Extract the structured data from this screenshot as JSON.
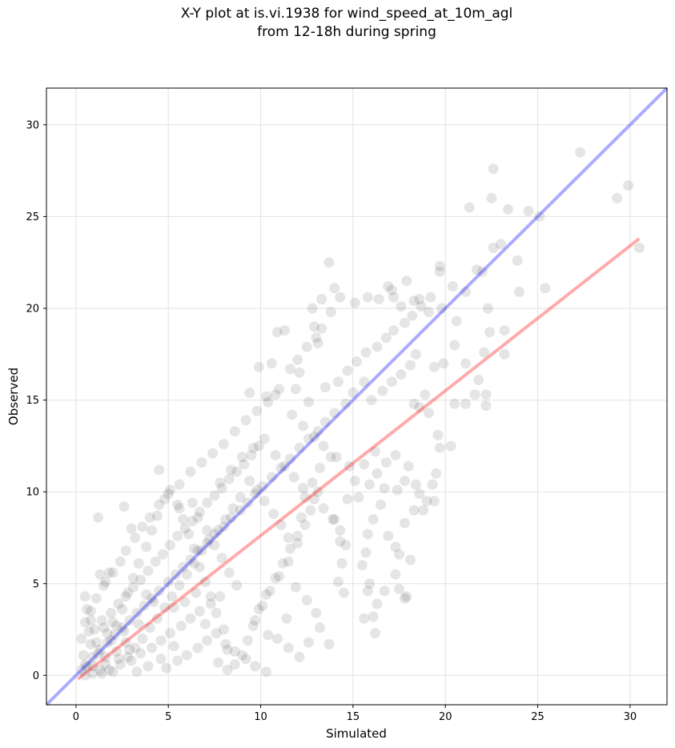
{
  "title_line1": "X-Y plot at is.vi.1938 for wind_speed_at_10m_agl",
  "title_line2": "from 12-18h during spring",
  "chart_data": {
    "type": "scatter",
    "title": "X-Y plot at is.vi.1938 for wind_speed_at_10m_agl\nfrom 12-18h during spring",
    "xlabel": "Simulated",
    "ylabel": "Observed",
    "xlim": [
      -1.6,
      32.0
    ],
    "ylim": [
      -1.6,
      32.0
    ],
    "xticks": [
      0,
      5,
      10,
      15,
      20,
      25,
      30
    ],
    "yticks": [
      0,
      5,
      10,
      15,
      20,
      25,
      30
    ],
    "grid": true,
    "point_color": "#000000",
    "point_alpha": 0.1,
    "lines": [
      {
        "type": "one-to-one",
        "color": "#0000ff",
        "x": [
          -1.6,
          32.0
        ],
        "y": [
          -1.6,
          32.0
        ]
      },
      {
        "type": "regression",
        "color": "#ff0000",
        "x": [
          0.1,
          30.5
        ],
        "y": [
          -0.2,
          23.8
        ]
      }
    ],
    "points": [
      [
        30.5,
        23.3
      ],
      [
        29.9,
        26.7
      ],
      [
        29.3,
        26.0
      ],
      [
        27.3,
        28.5
      ],
      [
        25.4,
        21.1
      ],
      [
        25.1,
        25.0
      ],
      [
        24.5,
        25.3
      ],
      [
        23.4,
        25.4
      ],
      [
        22.6,
        27.6
      ],
      [
        22.5,
        26.0
      ],
      [
        23.0,
        23.5
      ],
      [
        22.6,
        23.3
      ],
      [
        21.3,
        25.5
      ],
      [
        22.0,
        22.0
      ],
      [
        23.2,
        18.8
      ],
      [
        24.0,
        20.9
      ],
      [
        23.9,
        22.6
      ],
      [
        23.2,
        17.5
      ],
      [
        22.3,
        20.0
      ],
      [
        22.4,
        18.7
      ],
      [
        22.1,
        17.6
      ],
      [
        21.8,
        16.1
      ],
      [
        21.6,
        15.3
      ],
      [
        22.2,
        15.3
      ],
      [
        22.2,
        14.7
      ],
      [
        21.1,
        14.8
      ],
      [
        20.5,
        14.8
      ],
      [
        20.3,
        12.5
      ],
      [
        19.7,
        12.4
      ],
      [
        19.6,
        13.1
      ],
      [
        19.5,
        11.0
      ],
      [
        19.3,
        10.4
      ],
      [
        19.4,
        9.5
      ],
      [
        19.7,
        22.3
      ],
      [
        19.7,
        22.0
      ],
      [
        20.4,
        21.2
      ],
      [
        21.7,
        22.1
      ],
      [
        21.1,
        20.9
      ],
      [
        19.1,
        19.8
      ],
      [
        18.6,
        20.5
      ],
      [
        19.8,
        20.0
      ],
      [
        20.6,
        19.3
      ],
      [
        20.5,
        18.0
      ],
      [
        19.9,
        17.0
      ],
      [
        21.1,
        17.0
      ],
      [
        19.4,
        16.8
      ],
      [
        18.9,
        15.3
      ],
      [
        18.3,
        14.8
      ],
      [
        19.1,
        14.3
      ],
      [
        18.6,
        14.6
      ],
      [
        17.9,
        21.5
      ],
      [
        18.3,
        20.4
      ],
      [
        17.6,
        20.1
      ],
      [
        17.2,
        20.6
      ],
      [
        16.9,
        21.2
      ],
      [
        17.1,
        21.0
      ],
      [
        16.4,
        20.5
      ],
      [
        15.8,
        20.6
      ],
      [
        15.1,
        20.3
      ],
      [
        14.3,
        20.6
      ],
      [
        14.0,
        21.1
      ],
      [
        13.7,
        22.5
      ],
      [
        13.8,
        19.8
      ],
      [
        13.3,
        20.5
      ],
      [
        12.8,
        20.0
      ],
      [
        12.9,
        19.0
      ],
      [
        13.3,
        18.9
      ],
      [
        13.0,
        18.4
      ],
      [
        13.1,
        18.1
      ],
      [
        12.5,
        17.9
      ],
      [
        12.0,
        17.2
      ],
      [
        12.1,
        16.5
      ],
      [
        11.3,
        18.8
      ],
      [
        10.9,
        18.7
      ],
      [
        11.6,
        16.7
      ],
      [
        10.6,
        17.0
      ],
      [
        9.9,
        16.8
      ],
      [
        9.4,
        15.4
      ],
      [
        10.3,
        15.2
      ],
      [
        10.8,
        15.3
      ],
      [
        11.9,
        15.6
      ],
      [
        12.6,
        14.9
      ],
      [
        13.5,
        15.7
      ],
      [
        14.2,
        16.0
      ],
      [
        14.7,
        16.6
      ],
      [
        15.2,
        17.1
      ],
      [
        15.7,
        17.6
      ],
      [
        16.3,
        17.9
      ],
      [
        16.8,
        18.4
      ],
      [
        17.2,
        18.8
      ],
      [
        17.8,
        19.2
      ],
      [
        18.2,
        19.6
      ],
      [
        18.7,
        20.1
      ],
      [
        19.2,
        20.6
      ],
      [
        16.0,
        15.0
      ],
      [
        16.6,
        15.5
      ],
      [
        17.1,
        16.0
      ],
      [
        17.6,
        16.4
      ],
      [
        18.1,
        16.9
      ],
      [
        18.4,
        17.5
      ],
      [
        15.6,
        16.0
      ],
      [
        15.0,
        15.4
      ],
      [
        14.6,
        14.8
      ],
      [
        14.0,
        14.3
      ],
      [
        13.5,
        13.8
      ],
      [
        13.1,
        13.3
      ],
      [
        12.6,
        12.9
      ],
      [
        12.1,
        12.4
      ],
      [
        11.6,
        11.8
      ],
      [
        11.1,
        11.3
      ],
      [
        10.6,
        10.8
      ],
      [
        10.1,
        10.3
      ],
      [
        9.7,
        9.9
      ],
      [
        9.3,
        9.4
      ],
      [
        8.9,
        9.0
      ],
      [
        8.4,
        8.6
      ],
      [
        8.0,
        8.1
      ],
      [
        7.5,
        7.7
      ],
      [
        7.1,
        7.2
      ],
      [
        6.6,
        6.8
      ],
      [
        6.2,
        6.3
      ],
      [
        5.8,
        5.9
      ],
      [
        5.4,
        5.5
      ],
      [
        5.0,
        5.1
      ],
      [
        4.5,
        4.6
      ],
      [
        4.1,
        4.2
      ],
      [
        3.7,
        3.8
      ],
      [
        3.3,
        3.4
      ],
      [
        2.9,
        3.0
      ],
      [
        2.5,
        2.6
      ],
      [
        2.1,
        2.2
      ],
      [
        1.7,
        1.8
      ],
      [
        1.3,
        1.4
      ],
      [
        0.9,
        1.0
      ],
      [
        0.5,
        0.6
      ],
      [
        18.0,
        11.4
      ],
      [
        17.3,
        12.0
      ],
      [
        16.8,
        11.6
      ],
      [
        16.3,
        11.0
      ],
      [
        15.9,
        10.4
      ],
      [
        15.3,
        9.7
      ],
      [
        16.1,
        8.5
      ],
      [
        15.8,
        7.7
      ],
      [
        15.7,
        6.7
      ],
      [
        15.5,
        6.0
      ],
      [
        15.9,
        5.0
      ],
      [
        15.8,
        4.6
      ],
      [
        16.3,
        3.9
      ],
      [
        16.1,
        3.2
      ],
      [
        16.2,
        2.3
      ],
      [
        15.6,
        3.1
      ],
      [
        17.3,
        5.5
      ],
      [
        17.5,
        4.7
      ],
      [
        17.9,
        4.3
      ],
      [
        17.8,
        4.2
      ],
      [
        16.7,
        4.6
      ],
      [
        17.5,
        6.6
      ],
      [
        18.1,
        6.3
      ],
      [
        17.3,
        7.0
      ],
      [
        16.9,
        7.6
      ],
      [
        17.8,
        8.3
      ],
      [
        18.3,
        9.0
      ],
      [
        18.8,
        9.0
      ],
      [
        19.0,
        9.5
      ],
      [
        18.6,
        9.9
      ],
      [
        18.4,
        10.4
      ],
      [
        17.8,
        10.6
      ],
      [
        17.4,
        10.1
      ],
      [
        16.7,
        10.2
      ],
      [
        16.5,
        9.3
      ],
      [
        14.5,
        4.5
      ],
      [
        14.2,
        5.1
      ],
      [
        14.4,
        6.1
      ],
      [
        14.6,
        7.1
      ],
      [
        14.3,
        7.9
      ],
      [
        14.0,
        8.5
      ],
      [
        14.7,
        9.6
      ],
      [
        15.1,
        10.6
      ],
      [
        15.6,
        11.5
      ],
      [
        16.2,
        12.2
      ],
      [
        13.8,
        11.9
      ],
      [
        13.2,
        11.3
      ],
      [
        12.8,
        10.5
      ],
      [
        12.4,
        9.7
      ],
      [
        12.2,
        8.6
      ],
      [
        12.0,
        7.6
      ],
      [
        11.6,
        6.9
      ],
      [
        11.2,
        6.1
      ],
      [
        10.8,
        5.3
      ],
      [
        10.3,
        4.4
      ],
      [
        9.9,
        3.6
      ],
      [
        9.6,
        2.7
      ],
      [
        9.3,
        1.9
      ],
      [
        9.0,
        1.1
      ],
      [
        8.6,
        0.6
      ],
      [
        8.2,
        1.4
      ],
      [
        8.0,
        2.5
      ],
      [
        7.6,
        3.4
      ],
      [
        7.3,
        4.3
      ],
      [
        7.0,
        5.1
      ],
      [
        6.7,
        5.9
      ],
      [
        6.4,
        6.9
      ],
      [
        6.1,
        7.7
      ],
      [
        5.8,
        8.5
      ],
      [
        5.5,
        9.3
      ],
      [
        5.1,
        10.1
      ],
      [
        4.8,
        9.6
      ],
      [
        4.4,
        8.7
      ],
      [
        4.1,
        7.9
      ],
      [
        3.8,
        7.0
      ],
      [
        3.4,
        6.1
      ],
      [
        3.1,
        5.3
      ],
      [
        2.8,
        4.5
      ],
      [
        2.5,
        3.6
      ],
      [
        2.2,
        2.7
      ],
      [
        1.9,
        1.9
      ],
      [
        1.6,
        1.0
      ],
      [
        1.3,
        0.3
      ],
      [
        0.9,
        0.1
      ],
      [
        0.6,
        0.5
      ],
      [
        0.4,
        1.1
      ],
      [
        0.3,
        2.0
      ],
      [
        0.5,
        2.9
      ],
      [
        0.8,
        3.5
      ],
      [
        1.1,
        4.2
      ],
      [
        1.5,
        4.9
      ],
      [
        1.8,
        5.6
      ],
      [
        2.4,
        6.2
      ],
      [
        2.7,
        6.8
      ],
      [
        3.2,
        7.5
      ],
      [
        3.6,
        8.1
      ],
      [
        4.0,
        8.6
      ],
      [
        4.5,
        9.3
      ],
      [
        5.0,
        9.9
      ],
      [
        5.6,
        10.4
      ],
      [
        6.2,
        11.1
      ],
      [
        6.8,
        11.6
      ],
      [
        7.4,
        12.1
      ],
      [
        8.0,
        12.6
      ],
      [
        8.6,
        13.3
      ],
      [
        9.2,
        13.9
      ],
      [
        9.8,
        14.4
      ],
      [
        10.4,
        14.9
      ],
      [
        11.0,
        15.6
      ],
      [
        11.7,
        14.2
      ],
      [
        12.3,
        13.6
      ],
      [
        12.9,
        13.0
      ],
      [
        13.4,
        12.5
      ],
      [
        14.1,
        11.9
      ],
      [
        14.8,
        11.4
      ],
      [
        13.1,
        10.0
      ],
      [
        12.7,
        9.0
      ],
      [
        12.4,
        8.2
      ],
      [
        12.0,
        7.2
      ],
      [
        11.5,
        6.2
      ],
      [
        11.0,
        5.4
      ],
      [
        10.5,
        4.6
      ],
      [
        10.1,
        3.8
      ],
      [
        9.7,
        3.0
      ],
      [
        10.4,
        2.2
      ],
      [
        10.9,
        2.0
      ],
      [
        11.5,
        1.5
      ],
      [
        12.1,
        1.0
      ],
      [
        12.6,
        1.8
      ],
      [
        13.2,
        2.6
      ],
      [
        13.7,
        1.7
      ],
      [
        13.0,
        3.4
      ],
      [
        12.5,
        4.1
      ],
      [
        11.9,
        4.8
      ],
      [
        11.4,
        3.1
      ],
      [
        8.7,
        4.9
      ],
      [
        8.3,
        5.6
      ],
      [
        7.9,
        6.4
      ],
      [
        7.5,
        7.1
      ],
      [
        7.1,
        7.9
      ],
      [
        6.6,
        8.6
      ],
      [
        6.3,
        9.4
      ],
      [
        7.8,
        10.5
      ],
      [
        8.4,
        11.2
      ],
      [
        9.0,
        11.9
      ],
      [
        9.6,
        12.4
      ],
      [
        10.2,
        12.9
      ],
      [
        10.8,
        12.0
      ],
      [
        11.3,
        11.4
      ],
      [
        11.8,
        10.8
      ],
      [
        12.3,
        10.2
      ],
      [
        12.9,
        9.6
      ],
      [
        13.4,
        9.1
      ],
      [
        13.9,
        8.5
      ],
      [
        14.3,
        7.3
      ],
      [
        9.4,
        10.6
      ],
      [
        9.8,
        10.1
      ],
      [
        10.2,
        9.5
      ],
      [
        10.7,
        8.8
      ],
      [
        11.1,
        8.2
      ],
      [
        11.5,
        7.5
      ],
      [
        8.9,
        9.7
      ],
      [
        8.5,
        9.1
      ],
      [
        8.1,
        8.5
      ],
      [
        7.7,
        7.9
      ],
      [
        7.2,
        7.4
      ],
      [
        6.8,
        6.8
      ],
      [
        6.4,
        6.1
      ],
      [
        6.0,
        5.5
      ],
      [
        5.6,
        4.9
      ],
      [
        5.2,
        4.3
      ],
      [
        4.8,
        3.7
      ],
      [
        4.4,
        3.1
      ],
      [
        4.0,
        2.6
      ],
      [
        3.6,
        2.0
      ],
      [
        3.2,
        1.5
      ],
      [
        2.8,
        1.0
      ],
      [
        2.4,
        0.6
      ],
      [
        2.0,
        0.2
      ],
      [
        1.6,
        0.6
      ],
      [
        1.2,
        1.2
      ],
      [
        0.8,
        1.7
      ],
      [
        1.0,
        2.5
      ],
      [
        1.4,
        3.0
      ],
      [
        1.9,
        3.4
      ],
      [
        2.3,
        3.9
      ],
      [
        2.7,
        4.3
      ],
      [
        3.1,
        4.8
      ],
      [
        3.5,
        5.2
      ],
      [
        3.9,
        5.7
      ],
      [
        4.3,
        6.2
      ],
      [
        4.7,
        6.6
      ],
      [
        5.1,
        7.1
      ],
      [
        5.5,
        7.6
      ],
      [
        5.9,
        8.0
      ],
      [
        6.3,
        8.4
      ],
      [
        6.7,
        8.9
      ],
      [
        7.1,
        9.4
      ],
      [
        7.5,
        9.8
      ],
      [
        7.9,
        10.2
      ],
      [
        8.3,
        10.7
      ],
      [
        8.7,
        11.1
      ],
      [
        9.1,
        11.5
      ],
      [
        9.5,
        12.0
      ],
      [
        9.9,
        12.5
      ],
      [
        3.0,
        0.8
      ],
      [
        3.5,
        1.2
      ],
      [
        4.1,
        1.5
      ],
      [
        4.6,
        1.9
      ],
      [
        5.1,
        2.3
      ],
      [
        5.7,
        2.7
      ],
      [
        6.2,
        3.1
      ],
      [
        6.7,
        3.5
      ],
      [
        7.3,
        3.9
      ],
      [
        7.8,
        4.3
      ],
      [
        4.9,
        0.4
      ],
      [
        5.5,
        0.8
      ],
      [
        6.0,
        1.1
      ],
      [
        6.6,
        1.5
      ],
      [
        7.1,
        1.9
      ],
      [
        7.7,
        0.7
      ],
      [
        8.2,
        0.3
      ],
      [
        5.3,
        1.6
      ],
      [
        4.6,
        0.9
      ],
      [
        3.9,
        0.5
      ],
      [
        3.3,
        0.2
      ],
      [
        2.7,
        1.8
      ],
      [
        2.2,
        1.3
      ],
      [
        1.7,
        2.3
      ],
      [
        1.1,
        1.8
      ],
      [
        0.7,
        2.4
      ],
      [
        1.5,
        2.6
      ],
      [
        2.0,
        2.9
      ],
      [
        2.6,
        2.4
      ],
      [
        3.4,
        2.8
      ],
      [
        1.2,
        8.6
      ],
      [
        5.6,
        9.1
      ],
      [
        4.5,
        11.2
      ],
      [
        2.6,
        9.2
      ],
      [
        3.0,
        8.0
      ],
      [
        1.3,
        5.5
      ],
      [
        1.6,
        5.1
      ],
      [
        2.0,
        5.6
      ],
      [
        3.8,
        4.4
      ],
      [
        4.2,
        4.0
      ],
      [
        5.3,
        3.7
      ],
      [
        5.9,
        4.0
      ],
      [
        6.5,
        4.5
      ],
      [
        7.0,
        2.8
      ],
      [
        7.6,
        2.3
      ],
      [
        8.1,
        1.7
      ],
      [
        8.6,
        1.3
      ],
      [
        9.2,
        0.9
      ],
      [
        9.7,
        0.5
      ],
      [
        10.3,
        0.2
      ],
      [
        0.5,
        4.3
      ],
      [
        0.6,
        3.6
      ],
      [
        0.8,
        3.0
      ],
      [
        0.3,
        0.3
      ],
      [
        0.5,
        0.0
      ],
      [
        0.9,
        0.5
      ],
      [
        1.4,
        0.1
      ],
      [
        1.8,
        0.3
      ],
      [
        2.3,
        0.9
      ],
      [
        2.9,
        1.4
      ]
    ]
  }
}
